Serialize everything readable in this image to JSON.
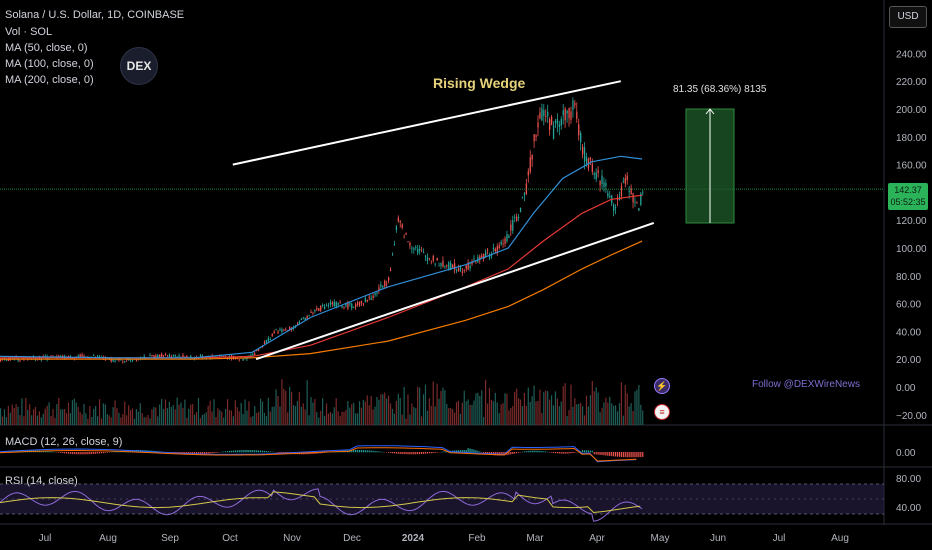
{
  "header": {
    "symbol_line": "Solana / U.S. Dollar, 1D, COINBASE",
    "vol_line": "Vol · SOL",
    "ma_lines": [
      "MA (50, close, 0)",
      "MA (100, close, 0)",
      "MA (200, close, 0)"
    ]
  },
  "currency_button": "USD",
  "logo_text": "DEX",
  "watermark": "Follow @DEXWireNews",
  "pattern_label": "Rising Wedge",
  "measure_label": "81.35 (68.36%) 8135",
  "price_tag": {
    "price": "142.37",
    "countdown": "05:52:35"
  },
  "macd_label": "MACD (12, 26, close, 9)",
  "rsi_label": "RSI (14, close)",
  "colors": {
    "up": "#26a69a",
    "down": "#ef5350",
    "ma50": "#2f8fd8",
    "ma100": "#e53935",
    "ma200": "#f57c00",
    "wedge": "#ffffff",
    "measure_box": "#1e5c2a",
    "price_line": "#2bb35a",
    "rsi_line": "#8e6ad8",
    "rsi_ma": "#d4c94a"
  },
  "chart_data": {
    "type": "candlestick",
    "price_axis_ticks": [
      240,
      220,
      200,
      180,
      160,
      140,
      120,
      100,
      80,
      60,
      40,
      20,
      0,
      -20
    ],
    "price_axis_labels": [
      "240.00",
      "220.00",
      "200.00",
      "180.00",
      "160.00",
      "140.00",
      "120.00",
      "100.00",
      "80.00",
      "60.00",
      "40.00",
      "20.00",
      "0.00",
      "−20.00"
    ],
    "macd_axis_labels": [
      "0.00"
    ],
    "rsi_axis_labels": [
      "80.00",
      "40.00"
    ],
    "time_axis_labels": [
      "Jul",
      "Aug",
      "Sep",
      "Oct",
      "Nov",
      "Dec",
      "2024",
      "Feb",
      "Mar",
      "Apr",
      "May",
      "Jun",
      "Jul",
      "Aug"
    ],
    "current_price": 142.37,
    "price_path": [
      [
        0,
        20
      ],
      [
        25,
        21
      ],
      [
        45,
        22
      ],
      [
        62,
        19
      ],
      [
        85,
        23
      ],
      [
        100,
        21
      ],
      [
        115,
        22
      ],
      [
        125,
        20
      ],
      [
        130,
        23
      ],
      [
        142,
        40
      ],
      [
        150,
        42
      ],
      [
        162,
        55
      ],
      [
        170,
        60
      ],
      [
        182,
        58
      ],
      [
        192,
        65
      ],
      [
        200,
        78
      ],
      [
        205,
        120
      ],
      [
        210,
        105
      ],
      [
        218,
        95
      ],
      [
        228,
        88
      ],
      [
        238,
        85
      ],
      [
        250,
        95
      ],
      [
        256,
        98
      ],
      [
        262,
        110
      ],
      [
        270,
        135
      ],
      [
        276,
        185
      ],
      [
        280,
        200
      ],
      [
        285,
        185
      ],
      [
        290,
        195
      ],
      [
        296,
        200
      ],
      [
        300,
        170
      ],
      [
        306,
        155
      ],
      [
        312,
        145
      ],
      [
        316,
        130
      ],
      [
        320,
        140
      ],
      [
        323,
        150
      ],
      [
        326,
        135
      ],
      [
        329,
        128
      ],
      [
        331,
        142
      ]
    ],
    "ma50_path": [
      [
        0,
        22
      ],
      [
        60,
        21
      ],
      [
        100,
        21
      ],
      [
        130,
        25
      ],
      [
        160,
        50
      ],
      [
        200,
        72
      ],
      [
        240,
        88
      ],
      [
        262,
        100
      ],
      [
        275,
        125
      ],
      [
        290,
        150
      ],
      [
        305,
        162
      ],
      [
        320,
        166
      ],
      [
        331,
        164
      ]
    ],
    "ma100_path": [
      [
        0,
        21
      ],
      [
        60,
        21
      ],
      [
        100,
        21
      ],
      [
        130,
        22
      ],
      [
        160,
        30
      ],
      [
        200,
        50
      ],
      [
        240,
        72
      ],
      [
        262,
        85
      ],
      [
        280,
        105
      ],
      [
        300,
        125
      ],
      [
        315,
        135
      ],
      [
        331,
        138
      ]
    ],
    "ma200_path": [
      [
        0,
        20
      ],
      [
        60,
        20
      ],
      [
        100,
        20
      ],
      [
        130,
        21
      ],
      [
        160,
        24
      ],
      [
        200,
        33
      ],
      [
        240,
        48
      ],
      [
        262,
        58
      ],
      [
        280,
        70
      ],
      [
        300,
        85
      ],
      [
        315,
        95
      ],
      [
        331,
        105
      ]
    ],
    "wedge_upper": [
      [
        120,
        160
      ],
      [
        320,
        220
      ]
    ],
    "wedge_lower": [
      [
        132,
        20
      ],
      [
        337,
        118
      ]
    ],
    "measure": {
      "from": 118,
      "to": 200,
      "change": 81.35,
      "percent": 68.36
    }
  }
}
